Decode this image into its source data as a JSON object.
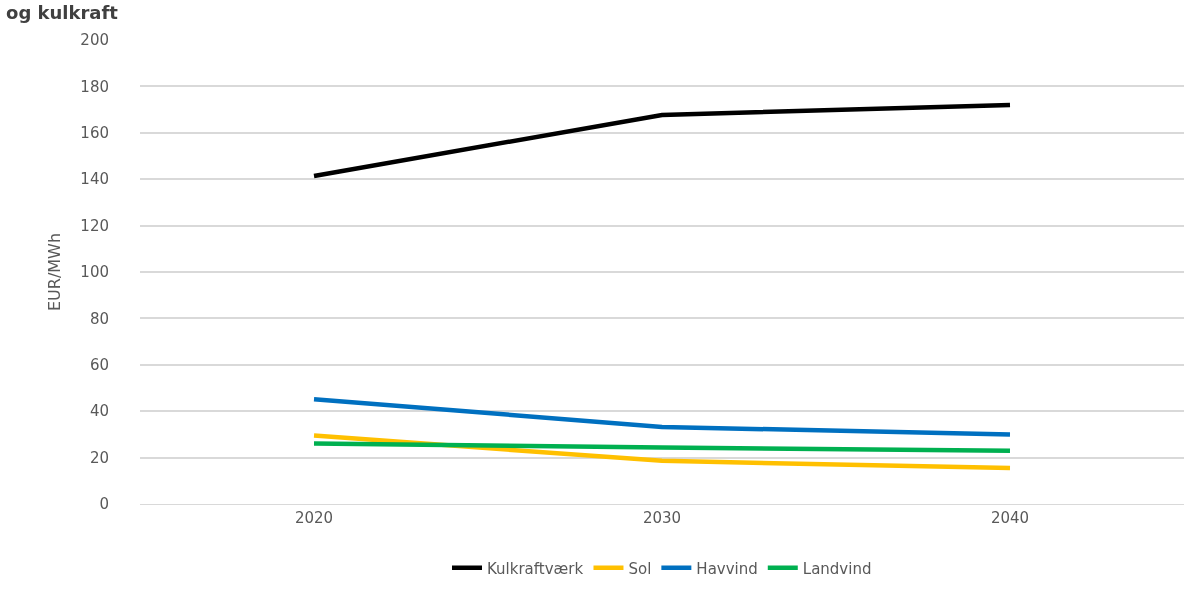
{
  "chart_data": {
    "type": "line",
    "title": "og kulkraft",
    "ylabel": "EUR/MWh",
    "categories": [
      "2020",
      "2030",
      "2040"
    ],
    "series": [
      {
        "name": "Kulkraftværk",
        "color": "#000000",
        "values": [
          141.4,
          167.7,
          172
        ]
      },
      {
        "name": "Sol",
        "color": "#ffc000",
        "values": [
          29.5,
          18.6,
          15.5
        ]
      },
      {
        "name": "Havvind",
        "color": "#0070c0",
        "values": [
          45.2,
          33.2,
          30
        ]
      },
      {
        "name": "Landvind",
        "color": "#00b050",
        "values": [
          26.1,
          24.3,
          22.9
        ]
      }
    ],
    "ylim": [
      0,
      200
    ],
    "yticks": [
      0,
      20,
      40,
      60,
      80,
      100,
      120,
      140,
      160,
      180,
      200
    ],
    "grid": "y",
    "legend": "bottom",
    "marker": "none",
    "line_style": "solid"
  }
}
